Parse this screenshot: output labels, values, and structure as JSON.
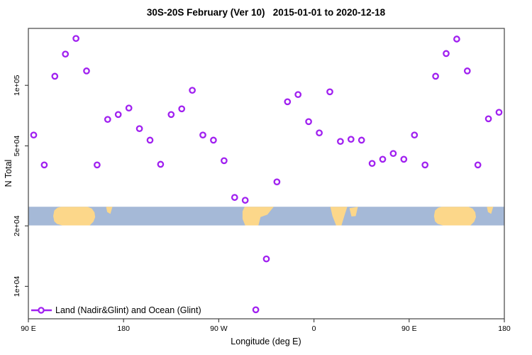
{
  "title": "30S-20S February (Ver 10)   2015-01-01 to 2020-12-18",
  "chart_data": {
    "type": "scatter",
    "title": "30S-20S February (Ver 10)   2015-01-01 to 2020-12-18",
    "xlabel": "Longitude (deg E)",
    "ylabel": "N Total",
    "x_axis": {
      "scale": "linear",
      "range": [
        90,
        540
      ],
      "note": "longitude in continuous deg E, wraps past 360",
      "ticks": [
        {
          "pos": 90,
          "label": "90 E"
        },
        {
          "pos": 180,
          "label": "180"
        },
        {
          "pos": 270,
          "label": "90 W"
        },
        {
          "pos": 360,
          "label": "0"
        },
        {
          "pos": 450,
          "label": "90 E"
        },
        {
          "pos": 540,
          "label": "180"
        }
      ]
    },
    "y_axis": {
      "scale": "log",
      "range": [
        6900,
        192000
      ],
      "ticks": [
        {
          "value": 100000,
          "label": "1e+05"
        },
        {
          "value": 50000,
          "label": "5e+04"
        },
        {
          "value": 20000,
          "label": "2e+04"
        },
        {
          "value": 10000,
          "label": "1e+04"
        }
      ]
    },
    "grid": false,
    "legend_position": "bottom-left",
    "series": [
      {
        "name": "Land (Nadir&Glint) and Ocean (Glint)",
        "color": "#A020F0",
        "marker": "open-circle",
        "points": [
          {
            "lon": 95,
            "n": 56600
          },
          {
            "lon": 105,
            "n": 40200
          },
          {
            "lon": 115,
            "n": 111000
          },
          {
            "lon": 125,
            "n": 143000
          },
          {
            "lon": 135,
            "n": 171000
          },
          {
            "lon": 145,
            "n": 118000
          },
          {
            "lon": 155,
            "n": 40200
          },
          {
            "lon": 165,
            "n": 67700
          },
          {
            "lon": 175,
            "n": 71600
          },
          {
            "lon": 185,
            "n": 77100
          },
          {
            "lon": 195,
            "n": 60900
          },
          {
            "lon": 205,
            "n": 53400
          },
          {
            "lon": 215,
            "n": 40500
          },
          {
            "lon": 225,
            "n": 71600
          },
          {
            "lon": 235,
            "n": 76400
          },
          {
            "lon": 245,
            "n": 94500
          },
          {
            "lon": 255,
            "n": 56600
          },
          {
            "lon": 265,
            "n": 53400
          },
          {
            "lon": 275,
            "n": 42200
          },
          {
            "lon": 285,
            "n": 27700
          },
          {
            "lon": 295,
            "n": 26800
          },
          {
            "lon": 305,
            "n": 7650
          },
          {
            "lon": 315,
            "n": 13700
          },
          {
            "lon": 325,
            "n": 33100
          },
          {
            "lon": 335,
            "n": 82900
          },
          {
            "lon": 345,
            "n": 90000
          },
          {
            "lon": 355,
            "n": 66000
          },
          {
            "lon": 365,
            "n": 58000
          },
          {
            "lon": 375,
            "n": 92900
          },
          {
            "lon": 385,
            "n": 52600
          },
          {
            "lon": 395,
            "n": 53900
          },
          {
            "lon": 405,
            "n": 53400
          },
          {
            "lon": 415,
            "n": 40900
          },
          {
            "lon": 425,
            "n": 42900
          },
          {
            "lon": 435,
            "n": 45800
          },
          {
            "lon": 445,
            "n": 42900
          },
          {
            "lon": 455,
            "n": 56600
          },
          {
            "lon": 465,
            "n": 40200
          },
          {
            "lon": 475,
            "n": 111000
          },
          {
            "lon": 485,
            "n": 144000
          },
          {
            "lon": 495,
            "n": 170000
          },
          {
            "lon": 505,
            "n": 118000
          },
          {
            "lon": 515,
            "n": 40200
          },
          {
            "lon": 525,
            "n": 68200
          },
          {
            "lon": 535,
            "n": 73400
          }
        ]
      }
    ],
    "map_band": {
      "top_n": 24900,
      "bottom_n": 20100,
      "ocean_color": "#a5b9d7",
      "land_color": "#fcd78a",
      "land": [
        {
          "name": "australia",
          "points": [
            [
              113.5,
              0.5
            ],
            [
              114.5,
              0.2
            ],
            [
              117.5,
              0.05
            ],
            [
              121,
              0
            ],
            [
              146,
              0
            ],
            [
              150,
              0.1
            ],
            [
              152.5,
              0.3
            ],
            [
              153.2,
              0.55
            ],
            [
              151.5,
              0.8
            ],
            [
              148,
              1
            ],
            [
              122,
              1
            ],
            [
              117,
              0.92
            ],
            [
              114.5,
              0.78
            ]
          ]
        },
        {
          "name": "new-caledonia",
          "points": [
            [
              163.5,
              0
            ],
            [
              169.5,
              0
            ],
            [
              167.5,
              0.38
            ],
            [
              164.5,
              0.28
            ]
          ]
        },
        {
          "name": "south-america",
          "points": [
            [
              292.5,
              0.25
            ],
            [
              294.5,
              0
            ],
            [
              322,
              0
            ],
            [
              316,
              0.42
            ],
            [
              309.5,
              0.55
            ],
            [
              307.5,
              1
            ],
            [
              295,
              1
            ],
            [
              292.5,
              0.65
            ]
          ]
        },
        {
          "name": "africa",
          "points": [
            [
              375.5,
              0
            ],
            [
              391.5,
              0
            ],
            [
              389,
              0.45
            ],
            [
              386,
              1
            ],
            [
              381,
              1
            ],
            [
              377.5,
              0.5
            ]
          ]
        },
        {
          "name": "madagascar",
          "points": [
            [
              393.5,
              0.08
            ],
            [
              401.5,
              0
            ],
            [
              399.5,
              0.5
            ],
            [
              395.5,
              0.52
            ]
          ]
        },
        {
          "name": "australia-wrap",
          "points": [
            [
              473.5,
              0.5
            ],
            [
              474.5,
              0.2
            ],
            [
              477.5,
              0.05
            ],
            [
              481,
              0
            ],
            [
              506,
              0
            ],
            [
              510,
              0.1
            ],
            [
              512.5,
              0.3
            ],
            [
              513.2,
              0.55
            ],
            [
              511.5,
              0.8
            ],
            [
              508,
              1
            ],
            [
              482,
              1
            ],
            [
              477,
              0.92
            ],
            [
              474.5,
              0.78
            ]
          ]
        },
        {
          "name": "new-caledonia-wrap",
          "points": [
            [
              523.5,
              0
            ],
            [
              529.5,
              0
            ],
            [
              527.5,
              0.38
            ],
            [
              524.5,
              0.28
            ]
          ]
        }
      ]
    },
    "colors": {
      "point": "#A020F0",
      "axis_box": "#444444",
      "text": "#000000"
    }
  },
  "legend": {
    "label": "Land (Nadir&Glint) and Ocean (Glint)"
  }
}
